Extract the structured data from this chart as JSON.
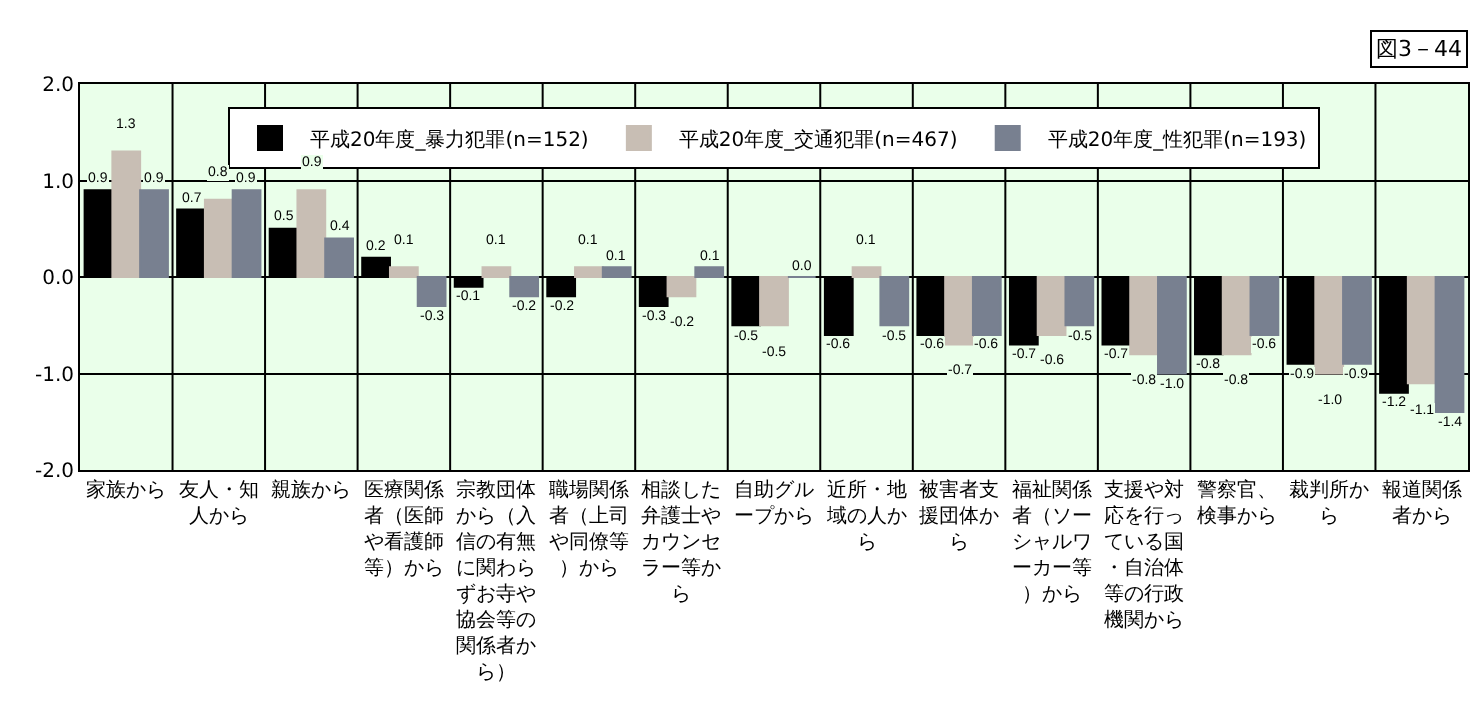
{
  "chart_data": {
    "type": "bar",
    "title": "図3－44",
    "categories": [
      "家族から",
      "友人・知人から",
      "親族から",
      "医療関係者（医師や看護師等）から",
      "宗教団体から（入信の有無に関わらずお寺や協会等の関係者から）",
      "職場関係者（上司や同僚等）から",
      "相談した弁護士やカウンセラー等から",
      "自助グループから",
      "近所・地域の人から",
      "被害者支援団体から",
      "福祉関係者（ソーシャルワーカー等）から",
      "支援や対応を行っている国・自治体等の行政機関から",
      "警察官、検事から",
      "裁判所から",
      "報道関係者から"
    ],
    "series": [
      {
        "name": "平成20年度_暴力犯罪(n=152)",
        "color": "#000000",
        "values": [
          0.9,
          0.7,
          0.5,
          0.2,
          -0.1,
          -0.2,
          -0.3,
          -0.5,
          -0.6,
          -0.6,
          -0.7,
          -0.7,
          -0.8,
          -0.9,
          -1.2
        ],
        "value_labels": [
          "0.9",
          "0.7",
          "0.5",
          "0.2",
          "-0.1",
          "-0.2",
          "-0.3",
          "-0.5",
          "-0.6",
          "-0.6",
          "-0.7",
          "-0.7",
          "-0.8",
          "-0.9",
          "-1.2"
        ]
      },
      {
        "name": "平成20年度_交通犯罪(n=467)",
        "color": "#c8beb4",
        "values": [
          1.3,
          0.8,
          0.9,
          0.1,
          0.1,
          0.1,
          -0.2,
          -0.5,
          0.1,
          -0.7,
          -0.6,
          -0.8,
          -0.8,
          -1.0,
          -1.1
        ],
        "value_labels": [
          "1.3",
          "0.8",
          "0.9",
          "0.1",
          "0.1",
          "0.1",
          "-0.2",
          "-0.5",
          "0.1",
          "-0.7",
          "-0.6",
          "-0.8",
          "-0.8",
          "-1.0",
          "-1.1"
        ]
      },
      {
        "name": "平成20年度_性犯罪(n=193)",
        "color": "#788090",
        "values": [
          0.9,
          0.9,
          0.4,
          -0.3,
          -0.2,
          0.1,
          0.1,
          0.0,
          -0.5,
          -0.6,
          -0.5,
          -1.0,
          -0.6,
          -0.9,
          -1.4
        ],
        "value_labels": [
          "0.9",
          "0.9",
          "0.4",
          "-0.3",
          "-0.2",
          "0.1",
          "0.1",
          "0.0",
          "-0.5",
          "-0.6",
          "-0.5",
          "-1.0",
          "-0.6",
          "-0.9",
          "-1.4"
        ]
      }
    ],
    "ylim": [
      -2,
      2
    ],
    "yticks": [
      {
        "value": 2,
        "label": "2.0"
      },
      {
        "value": 1,
        "label": "1.0"
      },
      {
        "value": 0,
        "label": "0.0"
      },
      {
        "value": -1,
        "label": "-1.0"
      },
      {
        "value": -2,
        "label": "-2.0"
      }
    ],
    "grid": true,
    "legend": "top"
  }
}
